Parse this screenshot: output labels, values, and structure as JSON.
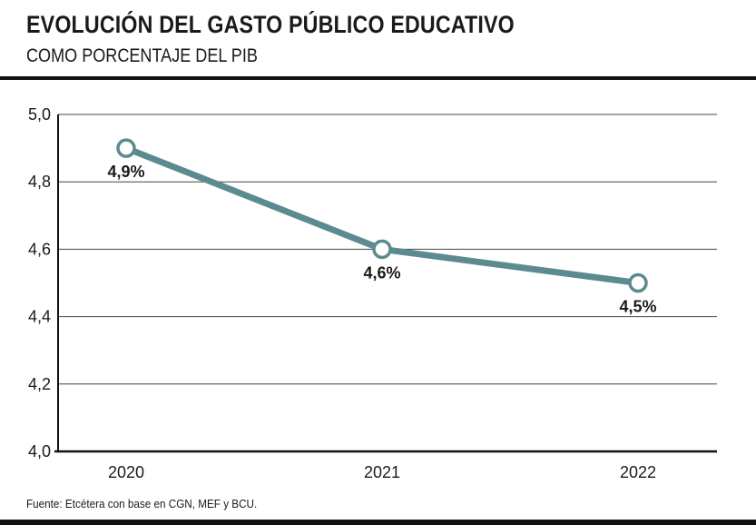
{
  "header": {
    "title": "EVOLUCIÓN DEL GASTO PÚBLICO EDUCATIVO",
    "subtitle": "COMO PORCENTAJE DEL PIB"
  },
  "footer": {
    "source": "Fuente: Etcétera con base en CGN, MEF y BCU."
  },
  "chart_data": {
    "type": "line",
    "title": "EVOLUCIÓN DEL GASTO PÚBLICO EDUCATIVO",
    "subtitle": "COMO PORCENTAJE DEL PIB",
    "categories": [
      "2020",
      "2021",
      "2022"
    ],
    "series": [
      {
        "values": [
          4.9,
          4.6,
          4.5
        ],
        "labels": [
          "4,9%",
          "4,6%",
          "4,5%"
        ],
        "color": "#5b8a8f"
      }
    ],
    "ylim": [
      4.0,
      5.0
    ],
    "yticks": [
      4.0,
      4.2,
      4.4,
      4.6,
      4.8,
      5.0
    ],
    "ytick_labels": [
      "4,0",
      "4,2",
      "4,4",
      "4,6",
      "4,8",
      "5,0"
    ],
    "grid": true,
    "line_color": "#5b8a8f",
    "grid_color": "#444444"
  }
}
